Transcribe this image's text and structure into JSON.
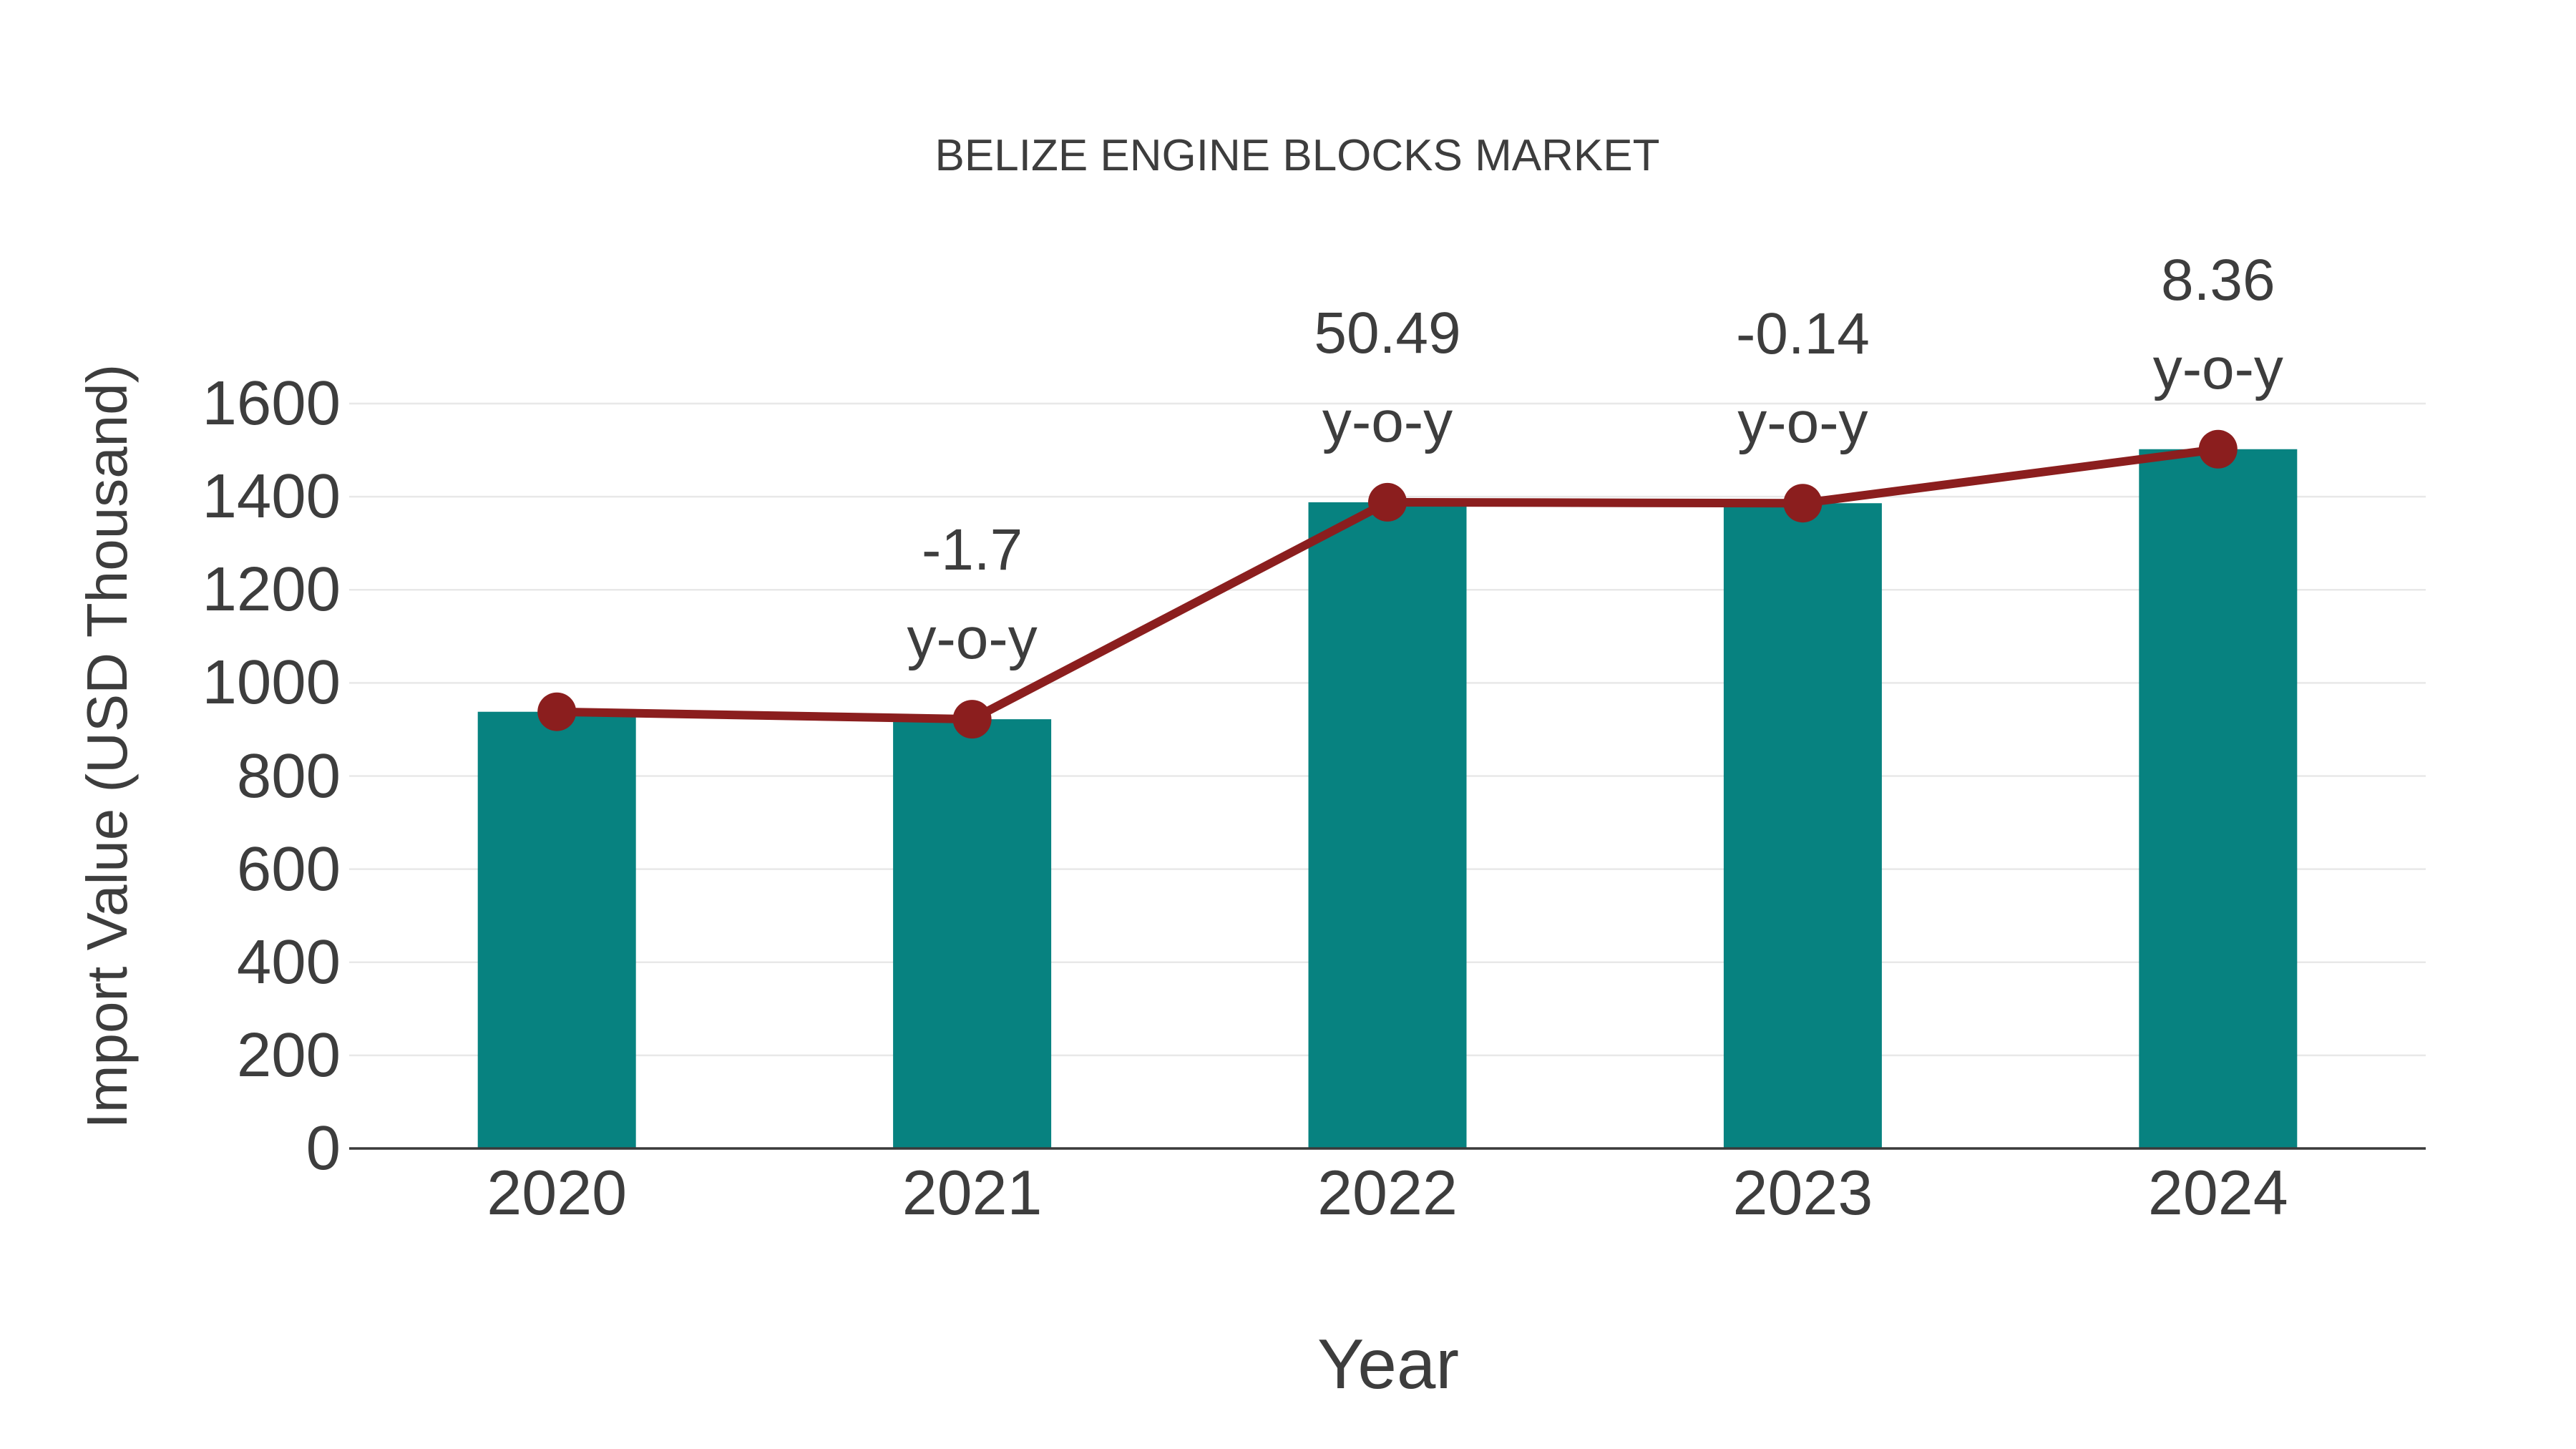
{
  "title": "BELIZE ENGINE BLOCKS MARKET",
  "axes": {
    "x_label": "Year",
    "y_label": "Import Value (USD Thousand)"
  },
  "chart_data": {
    "type": "bar",
    "title": "BELIZE ENGINE BLOCKS MARKET",
    "xlabel": "Year",
    "ylabel": "Import Value (USD Thousand)",
    "categories": [
      "2020",
      "2021",
      "2022",
      "2023",
      "2024"
    ],
    "series": [
      {
        "name": "Import Value (USD Thousand)",
        "type": "bar",
        "values": [
          938,
          922,
          1388,
          1386,
          1502
        ]
      },
      {
        "name": "Import Value trend",
        "type": "line",
        "values": [
          938,
          922,
          1388,
          1386,
          1502
        ]
      }
    ],
    "annotations": [
      {
        "category": "2021",
        "value_label": "-1.7",
        "unit_label": "y-o-y"
      },
      {
        "category": "2022",
        "value_label": "50.49",
        "unit_label": "y-o-y"
      },
      {
        "category": "2023",
        "value_label": "-0.14",
        "unit_label": "y-o-y"
      },
      {
        "category": "2024",
        "value_label": "8.36",
        "unit_label": "y-o-y"
      }
    ],
    "ylim": [
      0,
      1600
    ],
    "yticks": [
      0,
      200,
      400,
      600,
      800,
      1000,
      1200,
      1400,
      1600
    ],
    "grid": "horizontal",
    "legend": "none",
    "colors": {
      "bar": "#078280",
      "line": "#8B1E1E",
      "marker": "#8B1E1E",
      "text": "#3D3D3D",
      "grid": "#E8E8E8",
      "axis": "#3A3A3A",
      "background": "#FFFFFF"
    }
  }
}
